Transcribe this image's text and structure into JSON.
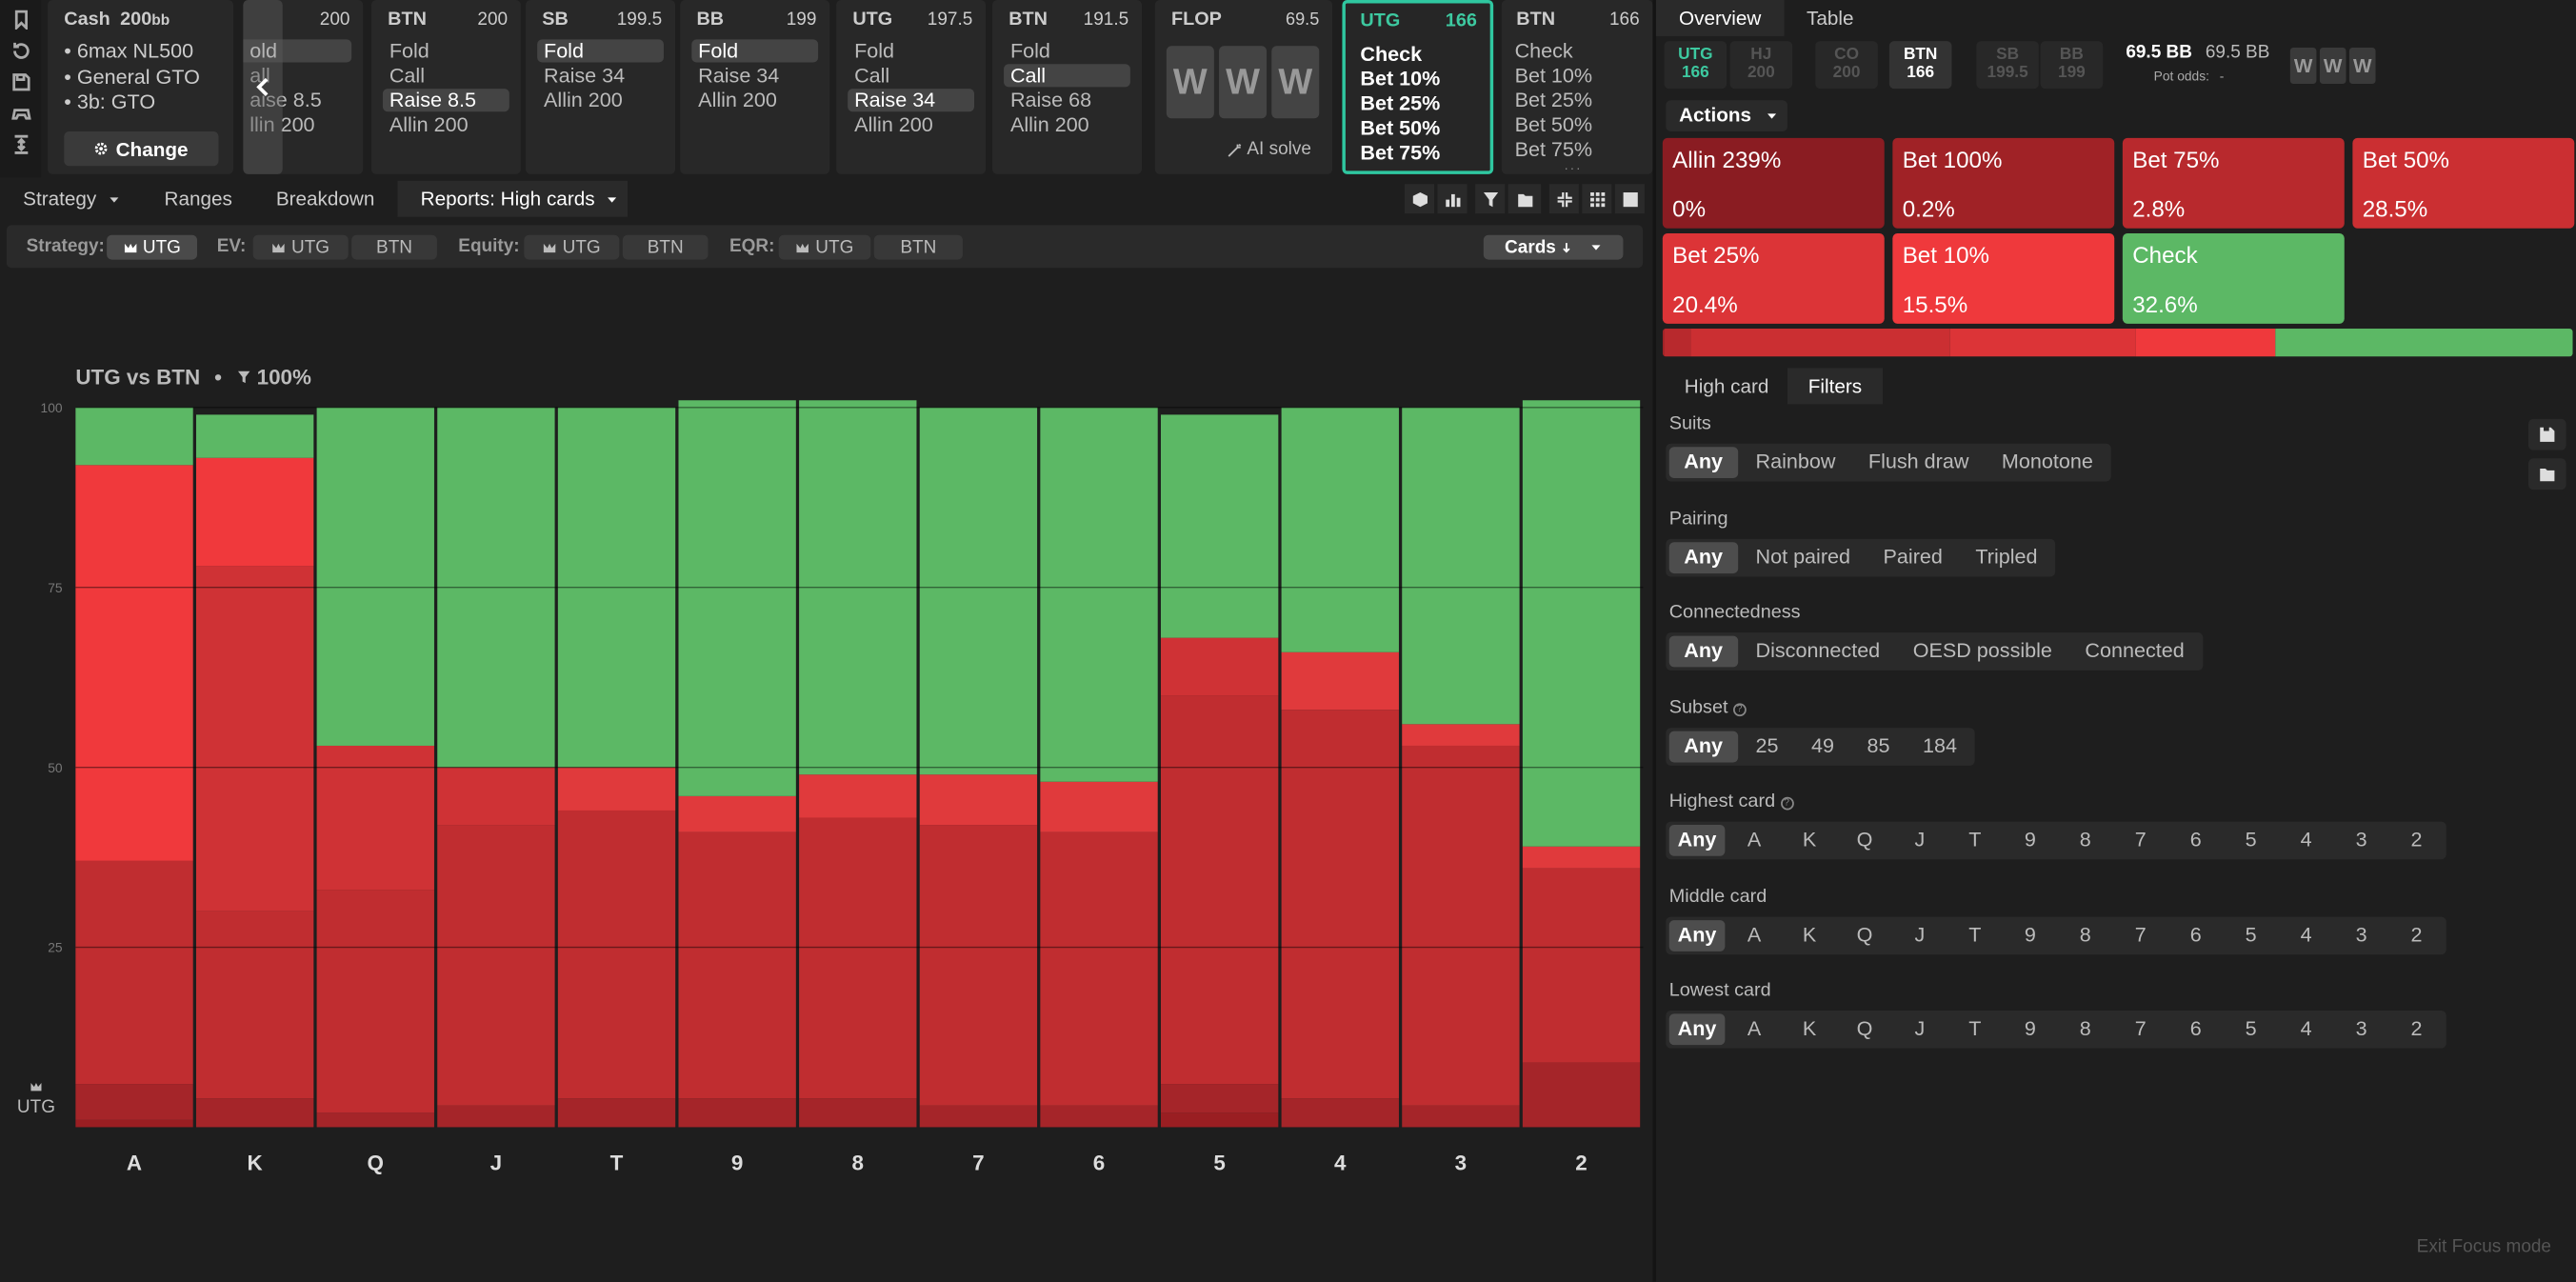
{
  "game": {
    "title": "Cash",
    "stack": "200",
    "stack_unit": "bb",
    "details": [
      "• 6max NL500",
      "• General GTO",
      "• 3b: GTO"
    ],
    "change_label": "Change"
  },
  "nav_back": "‹",
  "history": [
    {
      "pos": "",
      "stack": "200",
      "actions": [
        {
          "label": "old",
          "sel": true
        },
        {
          "label": "all",
          "sel": false
        },
        {
          "label": "aise 8.5",
          "sel": false
        },
        {
          "label": "llin 200",
          "sel": false
        }
      ]
    },
    {
      "pos": "BTN",
      "stack": "200",
      "actions": [
        {
          "label": "Fold",
          "sel": false
        },
        {
          "label": "Call",
          "sel": false
        },
        {
          "label": "Raise 8.5",
          "sel": true
        },
        {
          "label": "Allin 200",
          "sel": false
        }
      ]
    },
    {
      "pos": "SB",
      "stack": "199.5",
      "actions": [
        {
          "label": "Fold",
          "sel": true
        },
        {
          "label": "Raise 34",
          "sel": false
        },
        {
          "label": "Allin 200",
          "sel": false
        }
      ]
    },
    {
      "pos": "BB",
      "stack": "199",
      "actions": [
        {
          "label": "Fold",
          "sel": true
        },
        {
          "label": "Raise 34",
          "sel": false
        },
        {
          "label": "Allin 200",
          "sel": false
        }
      ]
    },
    {
      "pos": "UTG",
      "stack": "197.5",
      "actions": [
        {
          "label": "Fold",
          "sel": false
        },
        {
          "label": "Call",
          "sel": false
        },
        {
          "label": "Raise 34",
          "sel": true
        },
        {
          "label": "Allin 200",
          "sel": false
        }
      ]
    },
    {
      "pos": "BTN",
      "stack": "191.5",
      "actions": [
        {
          "label": "Fold",
          "sel": false
        },
        {
          "label": "Call",
          "sel": true
        },
        {
          "label": "Raise 68",
          "sel": false
        },
        {
          "label": "Allin 200",
          "sel": false
        }
      ]
    }
  ],
  "flop": {
    "label": "FLOP",
    "pot": "69.5",
    "cards": [
      "W",
      "W",
      "W"
    ],
    "ai_label": "AI solve"
  },
  "current": {
    "pos": "UTG",
    "stack": "166",
    "actions": [
      "Check",
      "Bet 10%",
      "Bet 25%",
      "Bet 50%",
      "Bet 75%"
    ]
  },
  "next": {
    "pos": "BTN",
    "stack": "166",
    "actions": [
      "Check",
      "Bet 10%",
      "Bet 25%",
      "Bet 50%",
      "Bet 75%"
    ]
  },
  "tabs": {
    "strategy": "Strategy",
    "ranges": "Ranges",
    "breakdown": "Breakdown",
    "reports": "Reports: High cards"
  },
  "filterbar": {
    "strategy_label": "Strategy:",
    "ev_label": "EV:",
    "equity_label": "Equity:",
    "eqr_label": "EQR:",
    "player_a": "UTG",
    "player_b": "BTN",
    "sort_label": "Cards"
  },
  "chart_header": {
    "title": "UTG vs BTN",
    "bullet": "•",
    "filter_value": "100%"
  },
  "chart_player": "UTG",
  "chart_data": {
    "type": "bar",
    "stacked": true,
    "categories": [
      "A",
      "K",
      "Q",
      "J",
      "T",
      "9",
      "8",
      "7",
      "6",
      "5",
      "4",
      "3",
      "2"
    ],
    "ylim": [
      0,
      100
    ],
    "yticks": [
      100,
      75,
      50,
      25
    ],
    "series": [
      {
        "name": "Allin 239%",
        "color": "#9a1e22",
        "values": [
          1,
          0,
          0,
          0,
          0,
          0,
          0,
          0,
          0,
          2,
          0,
          0,
          0
        ]
      },
      {
        "name": "Bet 100%",
        "color": "#a52529",
        "values": [
          5,
          4,
          2,
          3,
          4,
          4,
          4,
          3,
          3,
          4,
          4,
          3,
          9
        ]
      },
      {
        "name": "Bet 75%",
        "color": "#c02d30",
        "values": [
          31,
          26,
          31,
          39,
          40,
          37,
          39,
          39,
          38,
          54,
          54,
          50,
          27
        ]
      },
      {
        "name": "Bet 50%",
        "color": "#cf3235",
        "values": [
          0,
          48,
          20,
          8,
          0,
          0,
          0,
          0,
          0,
          8,
          0,
          0,
          0
        ]
      },
      {
        "name": "Bet 25%",
        "color": "#e03a3c",
        "values": [
          0,
          0,
          0,
          0,
          6,
          5,
          6,
          7,
          7,
          0,
          8,
          3,
          3
        ]
      },
      {
        "name": "Bet 10%",
        "color": "#f0393c",
        "values": [
          55,
          15,
          0,
          0,
          0,
          0,
          0,
          0,
          0,
          0,
          0,
          0,
          0
        ]
      },
      {
        "name": "Check",
        "color": "#5cb865",
        "values": [
          8,
          6,
          47,
          50,
          50,
          55,
          52,
          51,
          52,
          31,
          34,
          44,
          62
        ]
      }
    ]
  },
  "right": {
    "tabs": {
      "overview": "Overview",
      "table": "Table"
    },
    "positions": [
      {
        "name": "UTG",
        "stack": "166",
        "state": "act"
      },
      {
        "name": "HJ",
        "stack": "200",
        "state": "off"
      },
      {
        "name": "CO",
        "stack": "200",
        "state": "off"
      },
      {
        "name": "BTN",
        "stack": "166",
        "state": "cur"
      },
      {
        "name": "SB",
        "stack": "199.5",
        "state": "off"
      },
      {
        "name": "BB",
        "stack": "199",
        "state": "off"
      }
    ],
    "pot": "69.5 BB",
    "pot2": "69.5 BB",
    "pot_odds_label": "Pot odds:",
    "pot_odds_value": "-",
    "board": [
      "W",
      "W",
      "W"
    ],
    "actions_label": "Actions",
    "tiles": [
      {
        "name": "Allin 239%",
        "pct": "0%",
        "color": "#8a1c22"
      },
      {
        "name": "Bet 100%",
        "pct": "0.2%",
        "color": "#a02226"
      },
      {
        "name": "Bet 75%",
        "pct": "2.8%",
        "color": "#b8292d"
      },
      {
        "name": "Bet 50%",
        "pct": "28.5%",
        "color": "#cb2f32"
      },
      {
        "name": "Bet 25%",
        "pct": "20.4%",
        "color": "#dc3437"
      },
      {
        "name": "Bet 10%",
        "pct": "15.5%",
        "color": "#ef393c"
      },
      {
        "name": "Check",
        "pct": "32.6%",
        "color": "#5cb865"
      }
    ],
    "subtabs": {
      "high": "High card",
      "filters": "Filters"
    },
    "filters": {
      "suits": {
        "label": "Suits",
        "options": [
          "Any",
          "Rainbow",
          "Flush draw",
          "Monotone"
        ]
      },
      "pairing": {
        "label": "Pairing",
        "options": [
          "Any",
          "Not paired",
          "Paired",
          "Tripled"
        ]
      },
      "connectedness": {
        "label": "Connectedness",
        "options": [
          "Any",
          "Disconnected",
          "OESD possible",
          "Connected"
        ]
      },
      "subset": {
        "label": "Subset",
        "options": [
          "Any",
          "25",
          "49",
          "85",
          "184"
        ]
      },
      "highest": {
        "label": "Highest card",
        "options": [
          "Any",
          "A",
          "K",
          "Q",
          "J",
          "T",
          "9",
          "8",
          "7",
          "6",
          "5",
          "4",
          "3",
          "2"
        ]
      },
      "middle": {
        "label": "Middle card",
        "options": [
          "Any",
          "A",
          "K",
          "Q",
          "J",
          "T",
          "9",
          "8",
          "7",
          "6",
          "5",
          "4",
          "3",
          "2"
        ]
      },
      "lowest": {
        "label": "Lowest card",
        "options": [
          "Any",
          "A",
          "K",
          "Q",
          "J",
          "T",
          "9",
          "8",
          "7",
          "6",
          "5",
          "4",
          "3",
          "2"
        ]
      }
    },
    "exit": "Exit Focus mode"
  }
}
